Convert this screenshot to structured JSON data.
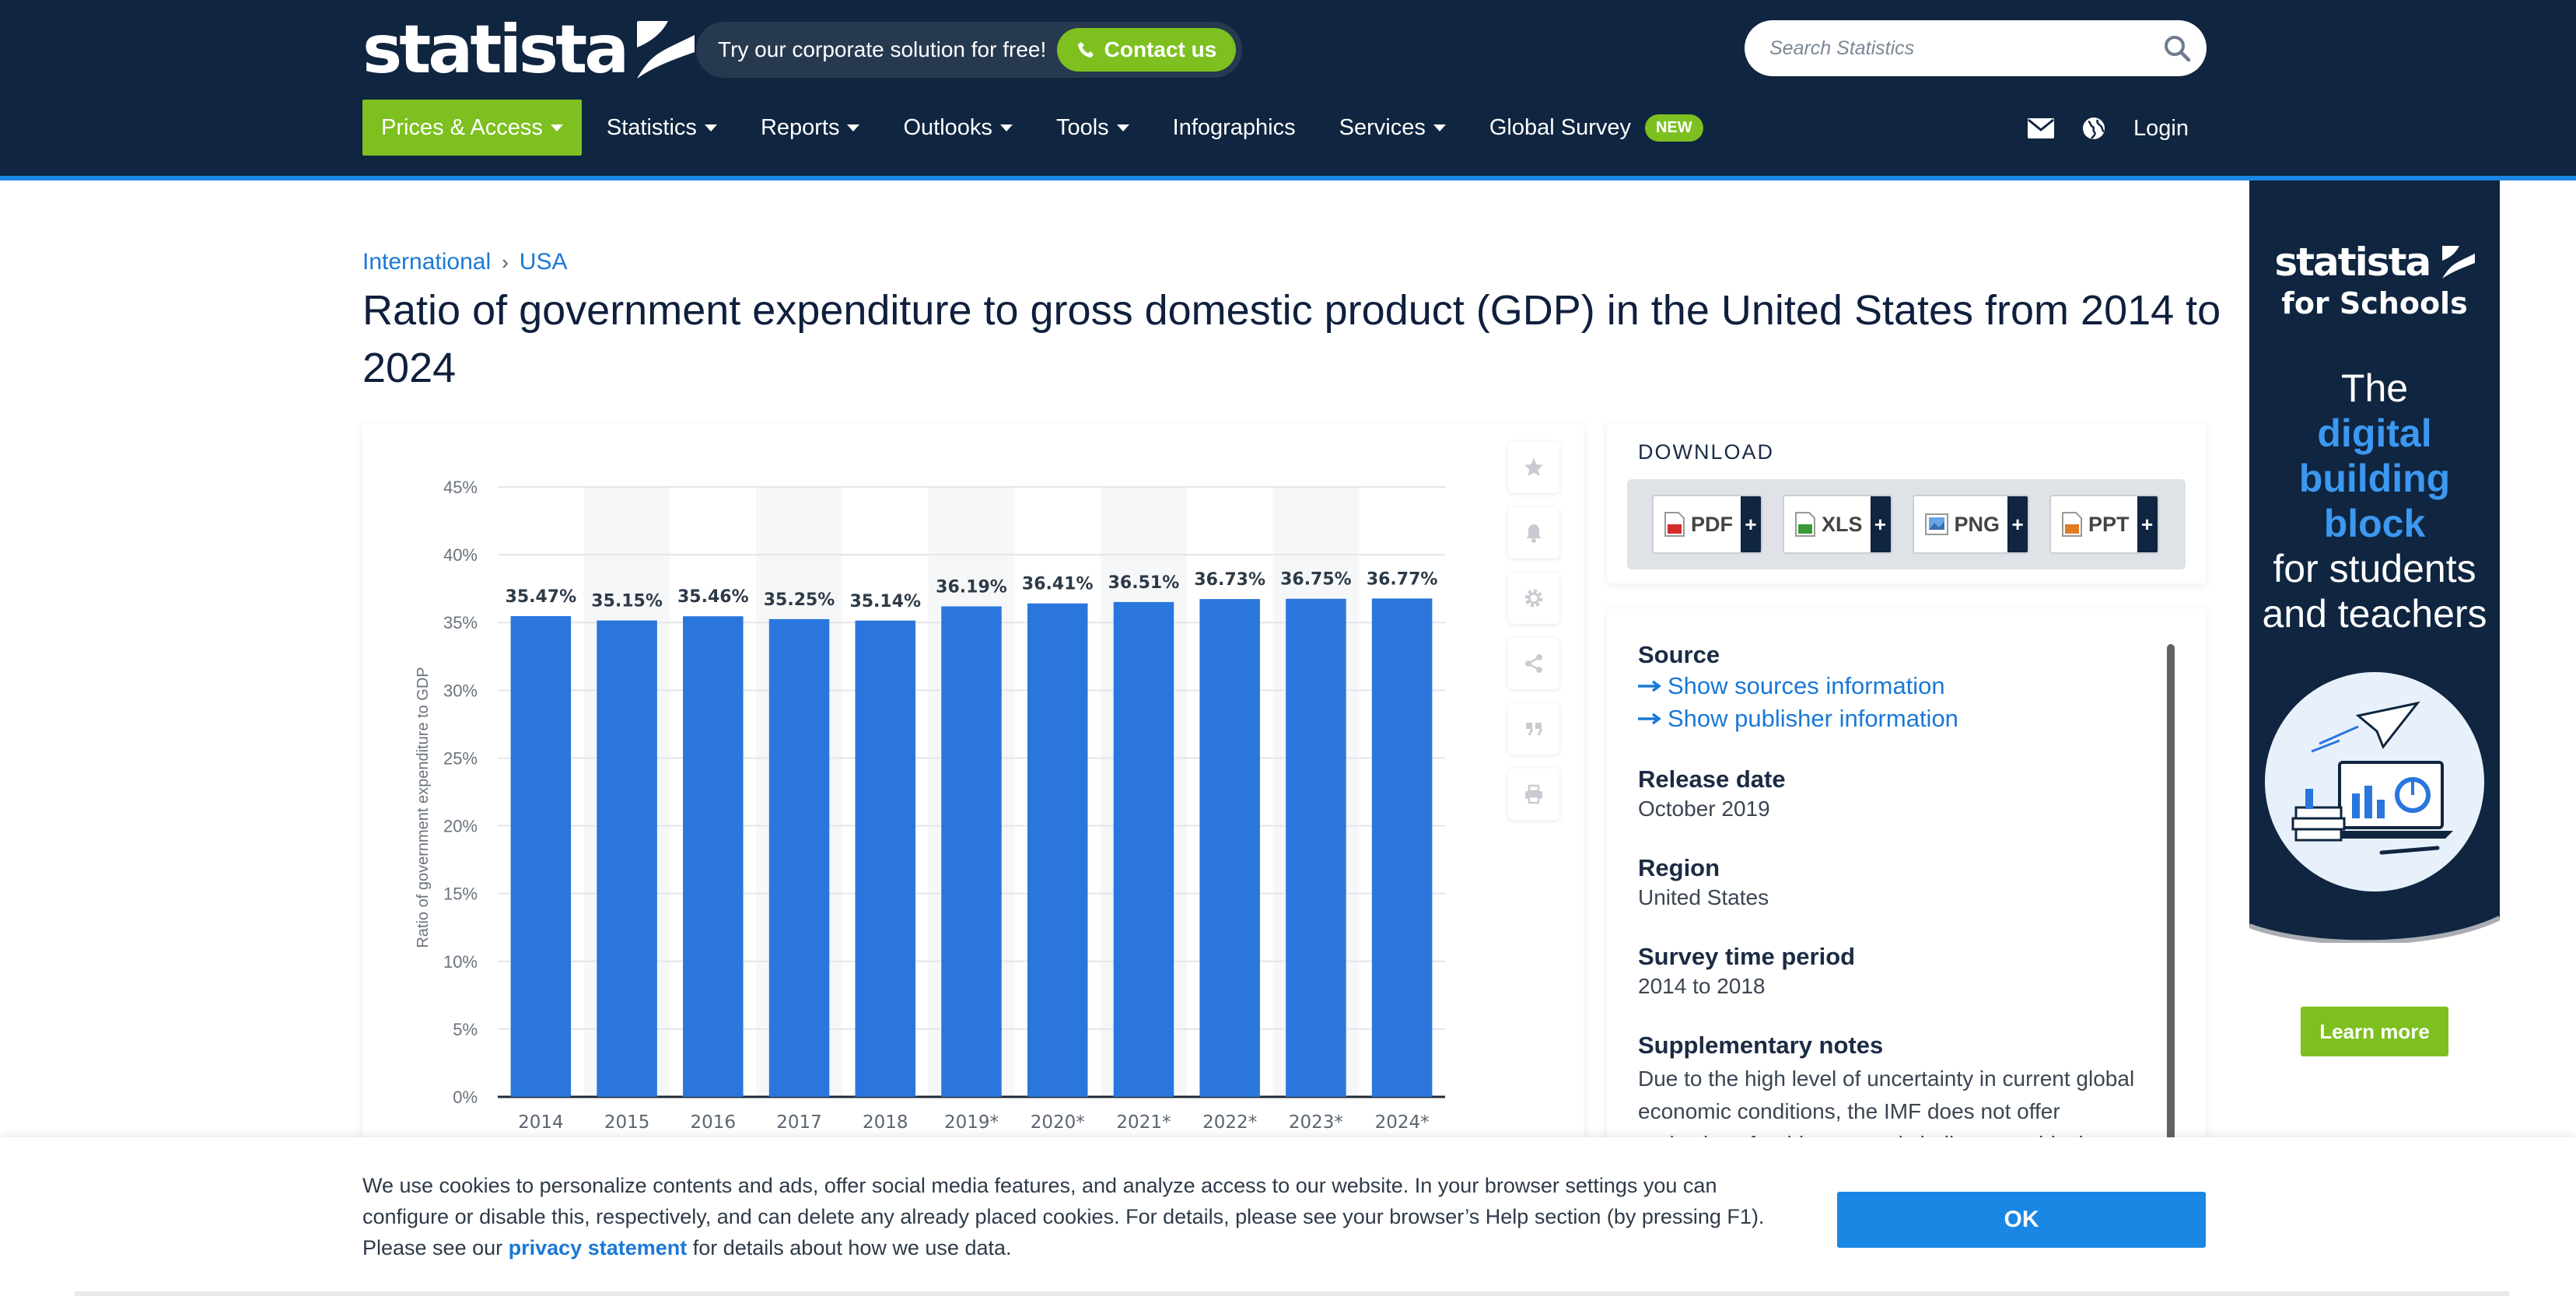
{
  "header": {
    "logo_text": "statista",
    "promo_text": "Try our corporate solution for free!",
    "contact_label": "Contact us",
    "search_placeholder": "Search Statistics",
    "nav": [
      {
        "label": "Prices & Access"
      },
      {
        "label": "Statistics"
      },
      {
        "label": "Reports"
      },
      {
        "label": "Outlooks"
      },
      {
        "label": "Tools"
      },
      {
        "label": "Infographics"
      },
      {
        "label": "Services"
      },
      {
        "label": "Global Survey"
      }
    ],
    "new_badge": "NEW",
    "login_label": "Login"
  },
  "breadcrumb": {
    "first": "International",
    "separator": "›",
    "second": "USA"
  },
  "page_title": "Ratio of government expenditure to gross domestic product (GDP) in the United States from 2014 to 2024",
  "chart_data": {
    "type": "bar",
    "categories": [
      "2014",
      "2015",
      "2016",
      "2017",
      "2018",
      "2019*",
      "2020*",
      "2021*",
      "2022*",
      "2023*",
      "2024*"
    ],
    "values": [
      35.47,
      35.15,
      35.46,
      35.25,
      35.14,
      36.19,
      36.41,
      36.51,
      36.73,
      36.75,
      36.77
    ],
    "value_labels": [
      "35.47%",
      "35.15%",
      "35.46%",
      "35.25%",
      "35.14%",
      "36.19%",
      "36.41%",
      "36.51%",
      "36.73%",
      "36.75%",
      "36.77%"
    ],
    "title": "",
    "xlabel": "",
    "ylabel": "Ratio of government expenditure to GDP",
    "ylim": [
      0,
      45
    ],
    "yticks": [
      "0%",
      "5%",
      "10%",
      "15%",
      "20%",
      "25%",
      "30%",
      "35%",
      "40%",
      "45%"
    ],
    "bar_color": "#2a76dd",
    "grid": true
  },
  "download": {
    "title": "DOWNLOAD",
    "buttons": [
      {
        "label": "PDF"
      },
      {
        "label": "XLS"
      },
      {
        "label": "PNG"
      },
      {
        "label": "PPT"
      }
    ],
    "plus": "+"
  },
  "info": {
    "source_h": "Source",
    "sources_link": "Show sources information",
    "publisher_link": "Show publisher information",
    "release_h": "Release date",
    "release_v": "October 2019",
    "region_h": "Region",
    "region_v": "United States",
    "survey_h": "Survey time period",
    "survey_v": "2014 to 2018",
    "notes_h": "Supplementary notes",
    "notes_v": "Due to the high level of uncertainty in current global economic conditions, the IMF does not offer projections for this economic indicator at this time. Data will be updated as soon as they are available."
  },
  "ad": {
    "logo_main": "statista",
    "logo_sub": "for Schools",
    "line1": "The",
    "line2": "digital",
    "line3": "building",
    "line4": "block",
    "line5": "for students",
    "line6": "and teachers",
    "cta": "Learn more"
  },
  "cookie": {
    "text_before": "We use cookies to personalize contents and ads, offer social media features, and analyze access to our website. In your browser settings you can configure or disable this, respectively, and can delete any already placed cookies. For details, please see your browser’s Help section (by pressing F1). Please see our ",
    "link": "privacy statement",
    "text_after": " for details about how we use data.",
    "ok_label": "OK"
  }
}
